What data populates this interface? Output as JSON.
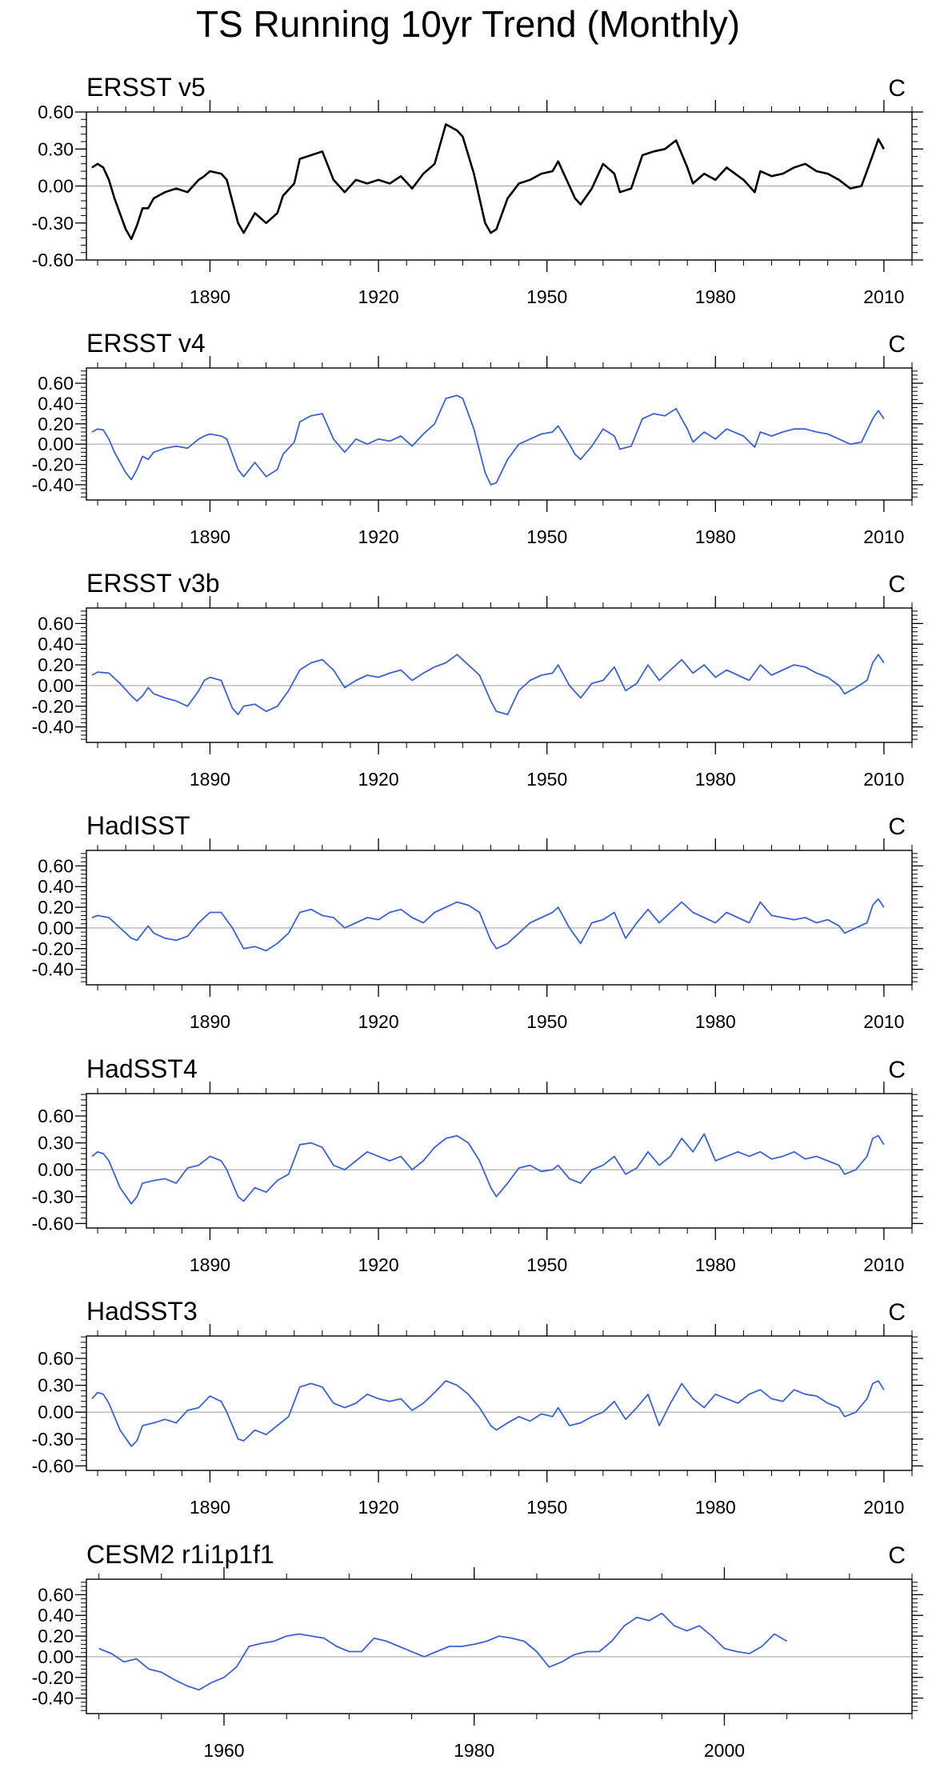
{
  "title": "TS Running 10yr Trend (Monthly)",
  "chart_data": [
    {
      "type": "line",
      "title": "ERSST v5",
      "units": "C",
      "line_color": "#000000",
      "xlim": [
        1868,
        2015
      ],
      "ylim": [
        -0.6,
        0.6
      ],
      "yticks": [
        -0.6,
        -0.3,
        0.0,
        0.3,
        0.6
      ],
      "ytick_labels": [
        "-0.60",
        "-0.30",
        "0.00",
        "0.30",
        "0.60"
      ],
      "xticks": [
        1890,
        1920,
        1950,
        1980,
        2010
      ],
      "xtick_labels": [
        "1890",
        "1920",
        "1950",
        "1980",
        "2010"
      ],
      "x": [
        1869,
        1870,
        1871,
        1872,
        1873,
        1875,
        1876,
        1877,
        1878,
        1879,
        1880,
        1882,
        1884,
        1886,
        1888,
        1889,
        1890,
        1892,
        1893,
        1895,
        1896,
        1898,
        1900,
        1902,
        1903,
        1905,
        1906,
        1908,
        1910,
        1912,
        1914,
        1916,
        1918,
        1920,
        1922,
        1924,
        1926,
        1928,
        1930,
        1932,
        1934,
        1935,
        1937,
        1939,
        1940,
        1941,
        1943,
        1945,
        1947,
        1949,
        1951,
        1952,
        1954,
        1955,
        1956,
        1958,
        1960,
        1962,
        1963,
        1965,
        1967,
        1969,
        1971,
        1973,
        1975,
        1976,
        1978,
        1980,
        1982,
        1985,
        1987,
        1988,
        1990,
        1992,
        1994,
        1996,
        1998,
        2000,
        2002,
        2004,
        2006,
        2008,
        2009,
        2010
      ],
      "y": [
        0.15,
        0.18,
        0.15,
        0.05,
        -0.1,
        -0.35,
        -0.43,
        -0.32,
        -0.18,
        -0.18,
        -0.1,
        -0.05,
        -0.02,
        -0.05,
        0.05,
        0.08,
        0.12,
        0.1,
        0.05,
        -0.3,
        -0.38,
        -0.22,
        -0.3,
        -0.22,
        -0.08,
        0.02,
        0.22,
        0.25,
        0.28,
        0.05,
        -0.05,
        0.05,
        0.02,
        0.05,
        0.02,
        0.08,
        -0.02,
        0.1,
        0.18,
        0.5,
        0.45,
        0.4,
        0.1,
        -0.3,
        -0.38,
        -0.35,
        -0.1,
        0.02,
        0.05,
        0.1,
        0.12,
        0.2,
        0.0,
        -0.1,
        -0.15,
        -0.02,
        0.18,
        0.1,
        -0.05,
        -0.02,
        0.25,
        0.28,
        0.3,
        0.37,
        0.15,
        0.02,
        0.1,
        0.05,
        0.15,
        0.05,
        -0.05,
        0.12,
        0.08,
        0.1,
        0.15,
        0.18,
        0.12,
        0.1,
        0.05,
        -0.02,
        0.0,
        0.25,
        0.38,
        0.3
      ]
    },
    {
      "type": "line",
      "title": "ERSST v4",
      "units": "C",
      "line_color": "#3a62d9",
      "xlim": [
        1868,
        2015
      ],
      "ylim": [
        -0.55,
        0.75
      ],
      "yticks": [
        -0.4,
        -0.2,
        0.0,
        0.2,
        0.4,
        0.6
      ],
      "ytick_labels": [
        "-0.40",
        "-0.20",
        "0.00",
        "0.20",
        "0.40",
        "0.60"
      ],
      "xticks": [
        1890,
        1920,
        1950,
        1980,
        2010
      ],
      "xtick_labels": [
        "1890",
        "1920",
        "1950",
        "1980",
        "2010"
      ],
      "x": [
        1869,
        1870,
        1871,
        1872,
        1873,
        1875,
        1876,
        1877,
        1878,
        1879,
        1880,
        1882,
        1884,
        1886,
        1888,
        1889,
        1890,
        1892,
        1893,
        1895,
        1896,
        1898,
        1900,
        1902,
        1903,
        1905,
        1906,
        1908,
        1910,
        1912,
        1914,
        1916,
        1918,
        1920,
        1922,
        1924,
        1926,
        1928,
        1930,
        1932,
        1934,
        1935,
        1937,
        1939,
        1940,
        1941,
        1943,
        1945,
        1947,
        1949,
        1951,
        1952,
        1954,
        1955,
        1956,
        1958,
        1960,
        1962,
        1963,
        1965,
        1967,
        1969,
        1971,
        1973,
        1975,
        1976,
        1978,
        1980,
        1982,
        1985,
        1987,
        1988,
        1990,
        1992,
        1994,
        1996,
        1998,
        2000,
        2002,
        2004,
        2006,
        2008,
        2009,
        2010
      ],
      "y": [
        0.12,
        0.15,
        0.14,
        0.05,
        -0.08,
        -0.28,
        -0.35,
        -0.25,
        -0.12,
        -0.15,
        -0.08,
        -0.04,
        -0.02,
        -0.04,
        0.05,
        0.08,
        0.1,
        0.08,
        0.05,
        -0.25,
        -0.32,
        -0.18,
        -0.32,
        -0.25,
        -0.1,
        0.02,
        0.22,
        0.28,
        0.3,
        0.05,
        -0.08,
        0.05,
        0.0,
        0.05,
        0.03,
        0.08,
        -0.02,
        0.1,
        0.2,
        0.45,
        0.48,
        0.45,
        0.15,
        -0.28,
        -0.4,
        -0.38,
        -0.15,
        0.0,
        0.05,
        0.1,
        0.12,
        0.18,
        0.0,
        -0.1,
        -0.15,
        -0.02,
        0.15,
        0.08,
        -0.05,
        -0.02,
        0.25,
        0.3,
        0.28,
        0.35,
        0.15,
        0.02,
        0.12,
        0.05,
        0.15,
        0.08,
        -0.03,
        0.12,
        0.08,
        0.12,
        0.15,
        0.15,
        0.12,
        0.1,
        0.05,
        0.0,
        0.02,
        0.25,
        0.33,
        0.25
      ]
    },
    {
      "type": "line",
      "title": "ERSST v3b",
      "units": "C",
      "line_color": "#3a62d9",
      "xlim": [
        1868,
        2015
      ],
      "ylim": [
        -0.55,
        0.75
      ],
      "yticks": [
        -0.4,
        -0.2,
        0.0,
        0.2,
        0.4,
        0.6
      ],
      "ytick_labels": [
        "-0.40",
        "-0.20",
        "0.00",
        "0.20",
        "0.40",
        "0.60"
      ],
      "xticks": [
        1890,
        1920,
        1950,
        1980,
        2010
      ],
      "xtick_labels": [
        "1890",
        "1920",
        "1950",
        "1980",
        "2010"
      ],
      "x": [
        1869,
        1870,
        1872,
        1874,
        1876,
        1877,
        1878,
        1879,
        1880,
        1882,
        1884,
        1886,
        1888,
        1889,
        1890,
        1892,
        1894,
        1895,
        1896,
        1898,
        1900,
        1902,
        1904,
        1906,
        1908,
        1910,
        1912,
        1914,
        1916,
        1918,
        1920,
        1922,
        1924,
        1926,
        1928,
        1930,
        1932,
        1934,
        1936,
        1938,
        1940,
        1941,
        1943,
        1945,
        1947,
        1949,
        1951,
        1952,
        1954,
        1956,
        1958,
        1960,
        1962,
        1964,
        1966,
        1968,
        1970,
        1972,
        1974,
        1976,
        1978,
        1980,
        1982,
        1984,
        1986,
        1988,
        1990,
        1992,
        1994,
        1996,
        1998,
        2000,
        2002,
        2003,
        2005,
        2007,
        2008,
        2009,
        2010
      ],
      "y": [
        0.1,
        0.13,
        0.12,
        0.02,
        -0.1,
        -0.15,
        -0.1,
        -0.02,
        -0.08,
        -0.12,
        -0.15,
        -0.2,
        -0.05,
        0.05,
        0.08,
        0.05,
        -0.22,
        -0.28,
        -0.2,
        -0.18,
        -0.25,
        -0.2,
        -0.05,
        0.15,
        0.22,
        0.25,
        0.15,
        -0.02,
        0.05,
        0.1,
        0.08,
        0.12,
        0.15,
        0.05,
        0.12,
        0.18,
        0.22,
        0.3,
        0.2,
        0.1,
        -0.15,
        -0.25,
        -0.28,
        -0.05,
        0.05,
        0.1,
        0.12,
        0.2,
        0.0,
        -0.12,
        0.02,
        0.05,
        0.18,
        -0.05,
        0.02,
        0.2,
        0.05,
        0.15,
        0.25,
        0.12,
        0.2,
        0.08,
        0.15,
        0.1,
        0.05,
        0.2,
        0.1,
        0.15,
        0.2,
        0.18,
        0.12,
        0.08,
        0.0,
        -0.08,
        -0.02,
        0.05,
        0.22,
        0.3,
        0.22
      ]
    },
    {
      "type": "line",
      "title": "HadISST",
      "units": "C",
      "line_color": "#3a62d9",
      "xlim": [
        1868,
        2015
      ],
      "ylim": [
        -0.55,
        0.75
      ],
      "yticks": [
        -0.4,
        -0.2,
        0.0,
        0.2,
        0.4,
        0.6
      ],
      "ytick_labels": [
        "-0.40",
        "-0.20",
        "0.00",
        "0.20",
        "0.40",
        "0.60"
      ],
      "xticks": [
        1890,
        1920,
        1950,
        1980,
        2010
      ],
      "xtick_labels": [
        "1890",
        "1920",
        "1950",
        "1980",
        "2010"
      ],
      "x": [
        1869,
        1870,
        1872,
        1874,
        1876,
        1877,
        1878,
        1879,
        1880,
        1882,
        1884,
        1886,
        1888,
        1890,
        1892,
        1894,
        1896,
        1898,
        1900,
        1902,
        1904,
        1906,
        1908,
        1910,
        1912,
        1914,
        1916,
        1918,
        1920,
        1922,
        1924,
        1926,
        1928,
        1930,
        1932,
        1934,
        1936,
        1938,
        1940,
        1941,
        1943,
        1945,
        1947,
        1949,
        1951,
        1952,
        1954,
        1956,
        1958,
        1960,
        1962,
        1964,
        1966,
        1968,
        1970,
        1972,
        1974,
        1976,
        1978,
        1980,
        1982,
        1984,
        1986,
        1988,
        1990,
        1992,
        1994,
        1996,
        1998,
        2000,
        2002,
        2003,
        2005,
        2007,
        2008,
        2009,
        2010
      ],
      "y": [
        0.1,
        0.12,
        0.1,
        0.0,
        -0.1,
        -0.12,
        -0.05,
        0.02,
        -0.05,
        -0.1,
        -0.12,
        -0.08,
        0.05,
        0.15,
        0.15,
        0.0,
        -0.2,
        -0.18,
        -0.22,
        -0.15,
        -0.05,
        0.15,
        0.18,
        0.12,
        0.1,
        0.0,
        0.05,
        0.1,
        0.08,
        0.15,
        0.18,
        0.1,
        0.05,
        0.15,
        0.2,
        0.25,
        0.22,
        0.15,
        -0.12,
        -0.2,
        -0.15,
        -0.05,
        0.05,
        0.1,
        0.15,
        0.2,
        0.0,
        -0.15,
        0.05,
        0.08,
        0.15,
        -0.1,
        0.05,
        0.18,
        0.05,
        0.15,
        0.25,
        0.15,
        0.1,
        0.05,
        0.15,
        0.1,
        0.05,
        0.25,
        0.12,
        0.1,
        0.08,
        0.1,
        0.05,
        0.08,
        0.02,
        -0.05,
        0.0,
        0.05,
        0.22,
        0.28,
        0.2
      ]
    },
    {
      "type": "line",
      "title": "HadSST4",
      "units": "C",
      "line_color": "#3a62d9",
      "xlim": [
        1868,
        2015
      ],
      "ylim": [
        -0.65,
        0.85
      ],
      "yticks": [
        -0.6,
        -0.3,
        0.0,
        0.3,
        0.6
      ],
      "ytick_labels": [
        "-0.60",
        "-0.30",
        "0.00",
        "0.30",
        "0.60"
      ],
      "xticks": [
        1890,
        1920,
        1950,
        1980,
        2010
      ],
      "xtick_labels": [
        "1890",
        "1920",
        "1950",
        "1980",
        "2010"
      ],
      "x": [
        1869,
        1870,
        1871,
        1872,
        1874,
        1876,
        1877,
        1878,
        1880,
        1882,
        1884,
        1886,
        1888,
        1890,
        1892,
        1893,
        1895,
        1896,
        1898,
        1900,
        1902,
        1904,
        1906,
        1908,
        1910,
        1912,
        1914,
        1916,
        1918,
        1920,
        1922,
        1924,
        1926,
        1928,
        1930,
        1932,
        1934,
        1936,
        1938,
        1940,
        1941,
        1943,
        1945,
        1947,
        1949,
        1951,
        1952,
        1954,
        1956,
        1958,
        1960,
        1962,
        1964,
        1966,
        1968,
        1970,
        1972,
        1974,
        1976,
        1978,
        1980,
        1982,
        1984,
        1986,
        1988,
        1990,
        1992,
        1994,
        1996,
        1998,
        2000,
        2002,
        2003,
        2005,
        2007,
        2008,
        2009,
        2010
      ],
      "y": [
        0.15,
        0.2,
        0.18,
        0.1,
        -0.2,
        -0.38,
        -0.3,
        -0.15,
        -0.12,
        -0.1,
        -0.15,
        0.02,
        0.05,
        0.15,
        0.1,
        0.0,
        -0.3,
        -0.35,
        -0.2,
        -0.25,
        -0.12,
        -0.05,
        0.28,
        0.3,
        0.25,
        0.05,
        0.0,
        0.1,
        0.2,
        0.15,
        0.1,
        0.15,
        0.0,
        0.1,
        0.25,
        0.35,
        0.38,
        0.3,
        0.1,
        -0.2,
        -0.3,
        -0.15,
        0.02,
        0.05,
        -0.02,
        0.0,
        0.05,
        -0.1,
        -0.15,
        0.0,
        0.05,
        0.15,
        -0.05,
        0.02,
        0.2,
        0.05,
        0.15,
        0.35,
        0.2,
        0.4,
        0.1,
        0.15,
        0.2,
        0.15,
        0.2,
        0.12,
        0.15,
        0.2,
        0.12,
        0.15,
        0.1,
        0.05,
        -0.05,
        0.0,
        0.15,
        0.35,
        0.38,
        0.28
      ]
    },
    {
      "type": "line",
      "title": "HadSST3",
      "units": "C",
      "line_color": "#3a62d9",
      "xlim": [
        1868,
        2015
      ],
      "ylim": [
        -0.65,
        0.85
      ],
      "yticks": [
        -0.6,
        -0.3,
        0.0,
        0.3,
        0.6
      ],
      "ytick_labels": [
        "-0.60",
        "-0.30",
        "0.00",
        "0.30",
        "0.60"
      ],
      "xticks": [
        1890,
        1920,
        1950,
        1980,
        2010
      ],
      "xtick_labels": [
        "1890",
        "1920",
        "1950",
        "1980",
        "2010"
      ],
      "x": [
        1869,
        1870,
        1871,
        1872,
        1874,
        1876,
        1877,
        1878,
        1880,
        1882,
        1884,
        1886,
        1888,
        1890,
        1892,
        1893,
        1895,
        1896,
        1898,
        1900,
        1902,
        1904,
        1906,
        1908,
        1910,
        1912,
        1914,
        1916,
        1918,
        1920,
        1922,
        1924,
        1926,
        1928,
        1930,
        1932,
        1934,
        1936,
        1938,
        1940,
        1941,
        1943,
        1945,
        1947,
        1949,
        1951,
        1952,
        1954,
        1956,
        1958,
        1960,
        1962,
        1964,
        1966,
        1968,
        1970,
        1972,
        1974,
        1976,
        1978,
        1980,
        1982,
        1984,
        1986,
        1988,
        1990,
        1992,
        1994,
        1996,
        1998,
        2000,
        2002,
        2003,
        2005,
        2007,
        2008,
        2009,
        2010
      ],
      "y": [
        0.15,
        0.22,
        0.2,
        0.1,
        -0.2,
        -0.38,
        -0.32,
        -0.15,
        -0.12,
        -0.08,
        -0.12,
        0.02,
        0.05,
        0.18,
        0.12,
        0.0,
        -0.3,
        -0.32,
        -0.2,
        -0.25,
        -0.15,
        -0.05,
        0.28,
        0.32,
        0.28,
        0.1,
        0.05,
        0.1,
        0.2,
        0.15,
        0.12,
        0.15,
        0.02,
        0.1,
        0.22,
        0.35,
        0.3,
        0.2,
        0.05,
        -0.15,
        -0.2,
        -0.12,
        -0.05,
        -0.1,
        -0.02,
        -0.05,
        0.05,
        -0.15,
        -0.12,
        -0.05,
        0.0,
        0.12,
        -0.08,
        0.05,
        0.2,
        -0.15,
        0.1,
        0.32,
        0.15,
        0.05,
        0.2,
        0.15,
        0.1,
        0.2,
        0.25,
        0.15,
        0.12,
        0.25,
        0.2,
        0.18,
        0.1,
        0.05,
        -0.05,
        0.0,
        0.15,
        0.32,
        0.35,
        0.25
      ]
    },
    {
      "type": "line",
      "title": "CESM2 r1i1p1f1",
      "units": "C",
      "line_color": "#3a62d9",
      "xlim": [
        1949,
        2015
      ],
      "ylim": [
        -0.55,
        0.75
      ],
      "yticks": [
        -0.4,
        -0.2,
        0.0,
        0.2,
        0.4,
        0.6
      ],
      "ytick_labels": [
        "-0.40",
        "-0.20",
        "0.00",
        "0.20",
        "0.40",
        "0.60"
      ],
      "xticks": [
        1960,
        1980,
        2000
      ],
      "xtick_labels": [
        "1960",
        "1980",
        "2000"
      ],
      "x": [
        1950,
        1951,
        1952,
        1953,
        1954,
        1955,
        1956,
        1957,
        1958,
        1959,
        1960,
        1961,
        1962,
        1963,
        1964,
        1965,
        1966,
        1967,
        1968,
        1969,
        1970,
        1971,
        1972,
        1973,
        1974,
        1975,
        1976,
        1977,
        1978,
        1979,
        1980,
        1981,
        1982,
        1983,
        1984,
        1985,
        1986,
        1987,
        1988,
        1989,
        1990,
        1991,
        1992,
        1993,
        1994,
        1995,
        1996,
        1997,
        1998,
        1999,
        2000,
        2001,
        2002,
        2003,
        2004,
        2005
      ],
      "y": [
        0.08,
        0.03,
        -0.05,
        -0.02,
        -0.12,
        -0.15,
        -0.22,
        -0.28,
        -0.32,
        -0.25,
        -0.2,
        -0.1,
        0.1,
        0.13,
        0.15,
        0.2,
        0.22,
        0.2,
        0.18,
        0.1,
        0.05,
        0.05,
        0.18,
        0.15,
        0.1,
        0.05,
        0.0,
        0.05,
        0.1,
        0.1,
        0.12,
        0.15,
        0.2,
        0.18,
        0.15,
        0.05,
        -0.1,
        -0.05,
        0.02,
        0.05,
        0.05,
        0.15,
        0.3,
        0.38,
        0.35,
        0.42,
        0.3,
        0.25,
        0.3,
        0.2,
        0.08,
        0.05,
        0.03,
        0.1,
        0.22,
        0.15
      ]
    }
  ]
}
